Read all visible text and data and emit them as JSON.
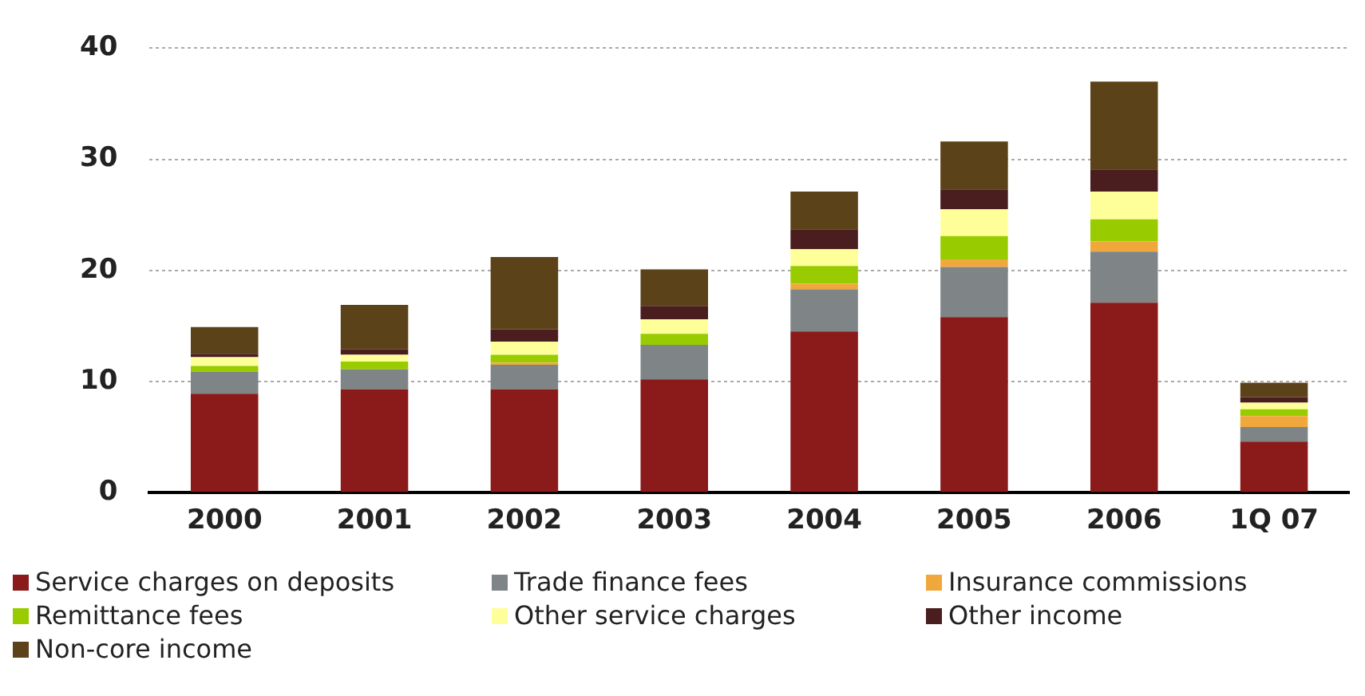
{
  "chart_data": {
    "type": "bar",
    "stacked": true,
    "categories": [
      "2000",
      "2001",
      "2002",
      "2003",
      "2004",
      "2005",
      "2006",
      "1Q 07"
    ],
    "series": [
      {
        "name": "Service charges on deposits",
        "color": "#8b1a1a",
        "values": [
          8.9,
          9.3,
          9.3,
          10.2,
          14.5,
          15.8,
          17.1,
          4.6
        ]
      },
      {
        "name": "Trade finance fees",
        "color": "#7f8486",
        "values": [
          2.0,
          1.8,
          2.2,
          3.1,
          3.8,
          4.5,
          4.6,
          1.3
        ]
      },
      {
        "name": "Insurance commissions",
        "color": "#f0a83c",
        "values": [
          0,
          0,
          0.2,
          0,
          0.5,
          0.7,
          0.9,
          1.0
        ]
      },
      {
        "name": "Remittance fees",
        "color": "#99cc00",
        "values": [
          0.5,
          0.7,
          0.7,
          1.0,
          1.6,
          2.1,
          2.0,
          0.6
        ]
      },
      {
        "name": "Other service charges",
        "color": "#ffff99",
        "values": [
          0.8,
          0.6,
          1.2,
          1.3,
          1.5,
          2.4,
          2.5,
          0.6
        ]
      },
      {
        "name": "Other income",
        "color": "#4a1e1e",
        "values": [
          0.3,
          0.5,
          1.1,
          1.2,
          1.8,
          1.8,
          2.0,
          0.5
        ]
      },
      {
        "name": "Non-core income",
        "color": "#5c4218",
        "values": [
          2.4,
          4.0,
          6.5,
          3.3,
          3.4,
          4.3,
          7.9,
          1.3
        ]
      }
    ],
    "ylim": [
      0,
      40
    ],
    "yticks": [
      0,
      10,
      20,
      30,
      40
    ],
    "grid": "y",
    "legend": "bottom"
  }
}
